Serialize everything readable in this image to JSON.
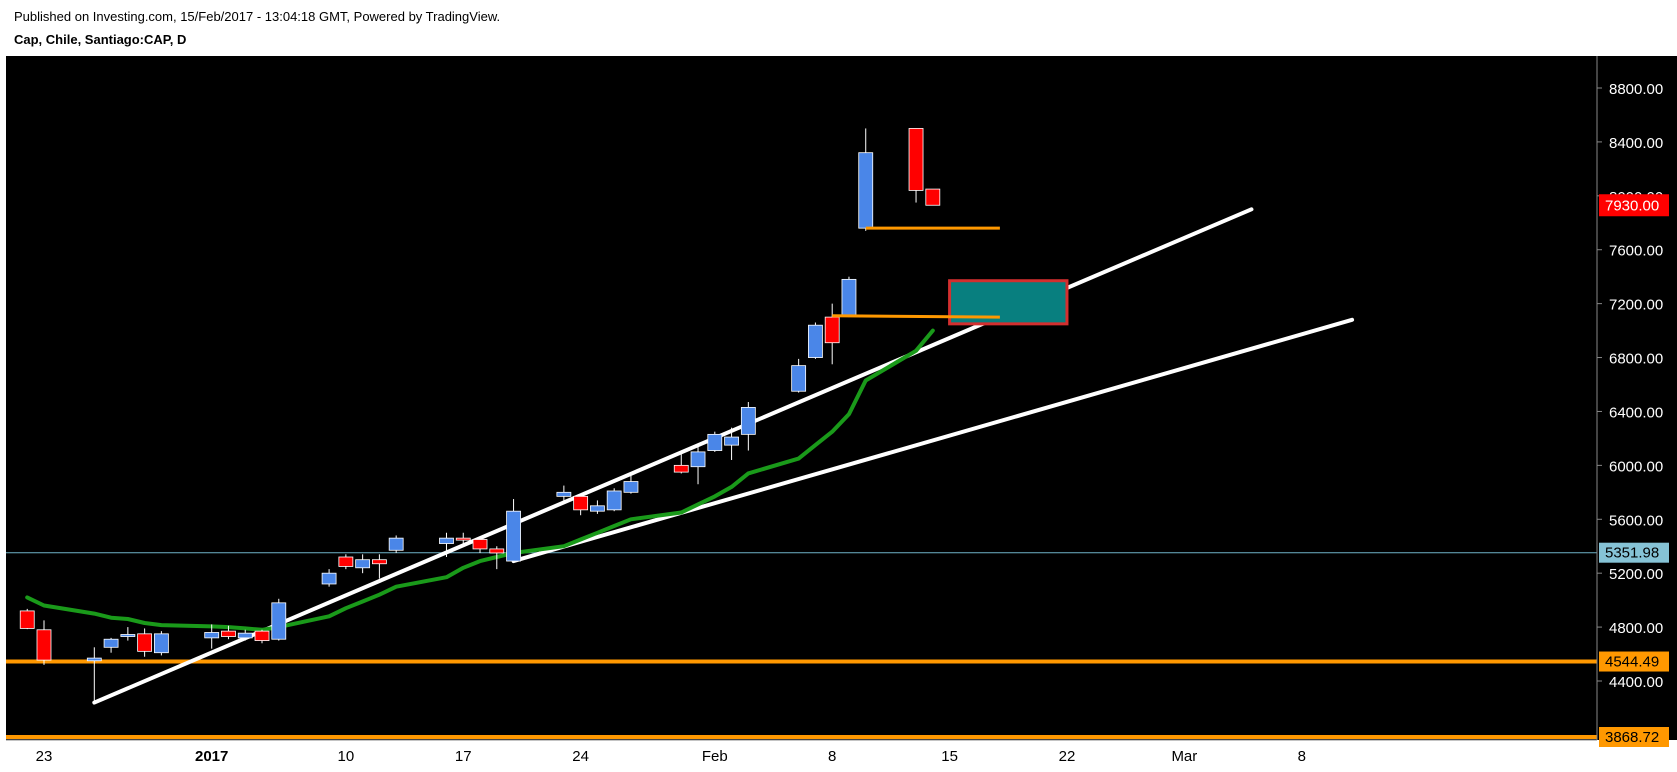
{
  "header": {
    "published": "Published on Investing.com, 15/Feb/2017 - 13:04:18 GMT, Powered by TradingView.",
    "symbol": "Cap, Chile, Santiago:CAP, D"
  },
  "colors": {
    "background": "#000000",
    "up": "#4a86e8",
    "down": "#ff0000",
    "ma": "#1a9a1a",
    "orange": "#ff9800",
    "trendline": "#ffffff",
    "box_fill": "#087f7f",
    "box_border": "#d32f2f",
    "reference_line": "#6fb3c7"
  },
  "chart_data": {
    "type": "candlestick",
    "interval": "D",
    "ylim": [
      3870,
      8850
    ],
    "y_ticks": [
      "8800.00",
      "8400.00",
      "8000.00",
      "7600.00",
      "7200.00",
      "6800.00",
      "6400.00",
      "6000.00",
      "5600.00",
      "5200.00",
      "4800.00",
      "4400.00"
    ],
    "x_ticks": [
      {
        "label": "23",
        "date": "2016-12-23",
        "bold": false
      },
      {
        "label": "2017",
        "date": "2017-01-02",
        "bold": true
      },
      {
        "label": "10",
        "date": "2017-01-10",
        "bold": false
      },
      {
        "label": "17",
        "date": "2017-01-17",
        "bold": false
      },
      {
        "label": "24",
        "date": "2017-01-24",
        "bold": false
      },
      {
        "label": "Feb",
        "date": "2017-02-01",
        "bold": false
      },
      {
        "label": "8",
        "date": "2017-02-08",
        "bold": false
      },
      {
        "label": "15",
        "date": "2017-02-15",
        "bold": false
      },
      {
        "label": "22",
        "date": "2017-02-22",
        "bold": false
      },
      {
        "label": "Mar",
        "date": "2017-03-01",
        "bold": false
      },
      {
        "label": "8",
        "date": "2017-03-08",
        "bold": false
      }
    ],
    "candles": [
      {
        "date": "2016-12-22",
        "o": 4920,
        "h": 4935,
        "l": 4785,
        "c": 4790
      },
      {
        "date": "2016-12-23",
        "o": 4780,
        "h": 4850,
        "l": 4520,
        "c": 4555
      },
      {
        "date": "2016-12-26",
        "o": 4550,
        "h": 4650,
        "l": 4230,
        "c": 4570
      },
      {
        "date": "2016-12-27",
        "o": 4650,
        "h": 4720,
        "l": 4610,
        "c": 4710
      },
      {
        "date": "2016-12-28",
        "o": 4730,
        "h": 4800,
        "l": 4700,
        "c": 4745
      },
      {
        "date": "2016-12-29",
        "o": 4750,
        "h": 4790,
        "l": 4580,
        "c": 4620
      },
      {
        "date": "2016-12-30",
        "o": 4610,
        "h": 4770,
        "l": 4590,
        "c": 4750
      },
      {
        "date": "2017-01-02",
        "o": 4720,
        "h": 4820,
        "l": 4640,
        "c": 4760
      },
      {
        "date": "2017-01-03",
        "o": 4770,
        "h": 4810,
        "l": 4710,
        "c": 4730
      },
      {
        "date": "2017-01-04",
        "o": 4720,
        "h": 4780,
        "l": 4700,
        "c": 4755
      },
      {
        "date": "2017-01-05",
        "o": 4770,
        "h": 4780,
        "l": 4680,
        "c": 4700
      },
      {
        "date": "2017-01-06",
        "o": 4710,
        "h": 5010,
        "l": 4700,
        "c": 4980
      },
      {
        "date": "2017-01-09",
        "o": 5120,
        "h": 5230,
        "l": 5100,
        "c": 5200
      },
      {
        "date": "2017-01-10",
        "o": 5320,
        "h": 5340,
        "l": 5230,
        "c": 5250
      },
      {
        "date": "2017-01-11",
        "o": 5240,
        "h": 5340,
        "l": 5200,
        "c": 5300
      },
      {
        "date": "2017-01-12",
        "o": 5300,
        "h": 5340,
        "l": 5160,
        "c": 5270
      },
      {
        "date": "2017-01-13",
        "o": 5370,
        "h": 5480,
        "l": 5350,
        "c": 5460
      },
      {
        "date": "2017-01-16",
        "o": 5420,
        "h": 5500,
        "l": 5320,
        "c": 5460
      },
      {
        "date": "2017-01-17",
        "o": 5460,
        "h": 5500,
        "l": 5400,
        "c": 5450
      },
      {
        "date": "2017-01-18",
        "o": 5450,
        "h": 5460,
        "l": 5350,
        "c": 5380
      },
      {
        "date": "2017-01-19",
        "o": 5380,
        "h": 5400,
        "l": 5230,
        "c": 5350
      },
      {
        "date": "2017-01-20",
        "o": 5290,
        "h": 5750,
        "l": 5290,
        "c": 5660
      },
      {
        "date": "2017-01-23",
        "o": 5770,
        "h": 5850,
        "l": 5720,
        "c": 5800
      },
      {
        "date": "2017-01-24",
        "o": 5770,
        "h": 5790,
        "l": 5630,
        "c": 5670
      },
      {
        "date": "2017-01-25",
        "o": 5660,
        "h": 5740,
        "l": 5640,
        "c": 5700
      },
      {
        "date": "2017-01-26",
        "o": 5670,
        "h": 5830,
        "l": 5660,
        "c": 5810
      },
      {
        "date": "2017-01-27",
        "o": 5800,
        "h": 5930,
        "l": 5790,
        "c": 5880
      },
      {
        "date": "2017-01-30",
        "o": 6000,
        "h": 6100,
        "l": 5940,
        "c": 5950
      },
      {
        "date": "2017-01-31",
        "o": 5990,
        "h": 6150,
        "l": 5860,
        "c": 6100
      },
      {
        "date": "2017-02-01",
        "o": 6110,
        "h": 6250,
        "l": 6100,
        "c": 6230
      },
      {
        "date": "2017-02-02",
        "o": 6150,
        "h": 6280,
        "l": 6040,
        "c": 6210
      },
      {
        "date": "2017-02-03",
        "o": 6230,
        "h": 6470,
        "l": 6110,
        "c": 6430
      },
      {
        "date": "2017-02-06",
        "o": 6550,
        "h": 6790,
        "l": 6540,
        "c": 6740
      },
      {
        "date": "2017-02-07",
        "o": 6800,
        "h": 7060,
        "l": 6790,
        "c": 7040
      },
      {
        "date": "2017-02-08",
        "o": 7100,
        "h": 7200,
        "l": 6750,
        "c": 6910
      },
      {
        "date": "2017-02-09",
        "o": 7110,
        "h": 7400,
        "l": 7100,
        "c": 7380
      },
      {
        "date": "2017-02-10",
        "o": 7760,
        "h": 8500,
        "l": 7740,
        "c": 8320
      },
      {
        "date": "2017-02-13",
        "o": 8500,
        "h": 8500,
        "l": 7950,
        "c": 8040
      },
      {
        "date": "2017-02-14",
        "o": 8050,
        "h": 8050,
        "l": 7930,
        "c": 7930
      }
    ],
    "moving_average": [
      {
        "date": "2016-12-22",
        "value": 5020
      },
      {
        "date": "2016-12-23",
        "value": 4960
      },
      {
        "date": "2016-12-26",
        "value": 4900
      },
      {
        "date": "2016-12-27",
        "value": 4870
      },
      {
        "date": "2016-12-28",
        "value": 4860
      },
      {
        "date": "2016-12-29",
        "value": 4830
      },
      {
        "date": "2016-12-30",
        "value": 4815
      },
      {
        "date": "2017-01-02",
        "value": 4805
      },
      {
        "date": "2017-01-03",
        "value": 4800
      },
      {
        "date": "2017-01-04",
        "value": 4790
      },
      {
        "date": "2017-01-05",
        "value": 4780
      },
      {
        "date": "2017-01-06",
        "value": 4800
      },
      {
        "date": "2017-01-09",
        "value": 4880
      },
      {
        "date": "2017-01-10",
        "value": 4940
      },
      {
        "date": "2017-01-11",
        "value": 4990
      },
      {
        "date": "2017-01-12",
        "value": 5040
      },
      {
        "date": "2017-01-13",
        "value": 5100
      },
      {
        "date": "2017-01-16",
        "value": 5170
      },
      {
        "date": "2017-01-17",
        "value": 5240
      },
      {
        "date": "2017-01-18",
        "value": 5290
      },
      {
        "date": "2017-01-19",
        "value": 5320
      },
      {
        "date": "2017-01-20",
        "value": 5350
      },
      {
        "date": "2017-01-23",
        "value": 5400
      },
      {
        "date": "2017-01-24",
        "value": 5450
      },
      {
        "date": "2017-01-25",
        "value": 5500
      },
      {
        "date": "2017-01-26",
        "value": 5550
      },
      {
        "date": "2017-01-27",
        "value": 5600
      },
      {
        "date": "2017-01-30",
        "value": 5650
      },
      {
        "date": "2017-01-31",
        "value": 5710
      },
      {
        "date": "2017-02-01",
        "value": 5770
      },
      {
        "date": "2017-02-02",
        "value": 5840
      },
      {
        "date": "2017-02-03",
        "value": 5940
      },
      {
        "date": "2017-02-06",
        "value": 6050
      },
      {
        "date": "2017-02-07",
        "value": 6150
      },
      {
        "date": "2017-02-08",
        "value": 6250
      },
      {
        "date": "2017-02-09",
        "value": 6380
      },
      {
        "date": "2017-02-10",
        "value": 6630
      },
      {
        "date": "2017-02-13",
        "value": 6850
      },
      {
        "date": "2017-02-14",
        "value": 7000
      }
    ],
    "trendlines": [
      {
        "from": {
          "date": "2016-12-26",
          "value": 4240
        },
        "to": {
          "date": "2017-03-05",
          "value": 7900
        }
      },
      {
        "from": {
          "date": "2017-01-20",
          "value": 5290
        },
        "to": {
          "date": "2017-03-11",
          "value": 7080
        }
      }
    ],
    "horizontal_levels": [
      {
        "value": 5351.98,
        "label": "5351.98",
        "style": "reference"
      },
      {
        "value": 4544.49,
        "label": "4544.49",
        "style": "support"
      },
      {
        "value": 3868.72,
        "label": "3868.72",
        "style": "support"
      }
    ],
    "segments": [
      {
        "from": {
          "date": "2017-02-10",
          "value": 7760
        },
        "to": {
          "date": "2017-02-18",
          "value": 7760
        }
      },
      {
        "from": {
          "date": "2017-02-08",
          "value": 7110
        },
        "to": {
          "date": "2017-02-18",
          "value": 7100
        }
      }
    ],
    "zone": {
      "date_from": "2017-02-15",
      "date_to": "2017-02-22",
      "high": 7370,
      "low": 7050
    },
    "last_price": {
      "value": 7930,
      "label": "7930.00"
    }
  }
}
